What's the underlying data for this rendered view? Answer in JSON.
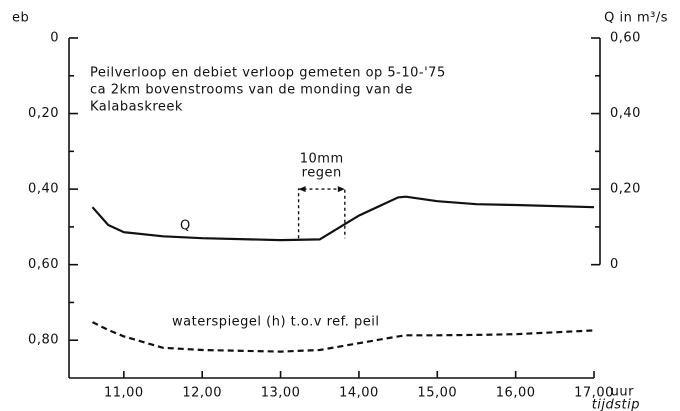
{
  "chart_data": {
    "type": "line",
    "title": [
      "Peilverloop en debiet verloop gemeten op 5-10-'75",
      "ca 2km bovenstrooms van de monding van de",
      "Kalabaskreek"
    ],
    "ylabel": "eb",
    "y2label": "Q in m³/s",
    "xlabel": "tijdstip",
    "xunit": "uur",
    "x": [
      10.6,
      10.8,
      11.0,
      11.5,
      12.0,
      13.0,
      13.5,
      14.0,
      14.5,
      14.6,
      15.0,
      15.5,
      16.0,
      17.0
    ],
    "series": [
      {
        "name": "Q",
        "color": "#111111",
        "axis": "y2",
        "dashed": false,
        "values": [
          0.152,
          0.105,
          0.086,
          0.075,
          0.07,
          0.065,
          0.067,
          0.13,
          0.178,
          0.18,
          0.168,
          0.16,
          0.158,
          0.152
        ]
      },
      {
        "name": "waterspiegel (h) t.o.v ref. peil",
        "color": "#111111",
        "axis": "y",
        "dashed": true,
        "values": [
          0.752,
          0.773,
          0.79,
          0.82,
          0.826,
          0.83,
          0.826,
          0.808,
          0.79,
          0.787,
          0.787,
          0.786,
          0.784,
          0.774
        ]
      }
    ],
    "annotations": [
      {
        "text": [
          "10mm",
          "regen"
        ],
        "x": [
          13.23,
          13.82
        ],
        "y": [
          0.53,
          0.4
        ]
      }
    ],
    "xlim": [
      10.3,
      17.0
    ],
    "xticks": [
      {
        "value": 11,
        "label": "11,00"
      },
      {
        "value": 12,
        "label": "12,00"
      },
      {
        "value": 13,
        "label": "13,00"
      },
      {
        "value": 14,
        "label": "14,00"
      },
      {
        "value": 15,
        "label": "15,00"
      },
      {
        "value": 16,
        "label": "16,00"
      },
      {
        "value": 17,
        "label": "17,00"
      }
    ],
    "ylim": [
      0,
      0.9
    ],
    "y_inverted": true,
    "yticks": [
      0,
      {
        "value": 0.2,
        "label": "0,20"
      },
      {
        "value": 0.4,
        "label": "0,40"
      },
      {
        "value": 0.6,
        "label": "0,60"
      },
      {
        "value": 0.8,
        "label": "0,80"
      }
    ],
    "yminor": [
      0.1,
      0.3,
      0.5,
      0.7
    ],
    "y2lim": [
      -0.3,
      0.6
    ],
    "y2ticks": [
      {
        "value": 0.6,
        "label": "0,60"
      },
      {
        "value": 0.4,
        "label": "0,40"
      },
      {
        "value": 0.2,
        "label": "0,20"
      },
      0
    ],
    "y2minor": [
      0.5,
      0.3,
      0.1
    ],
    "grid": false
  }
}
